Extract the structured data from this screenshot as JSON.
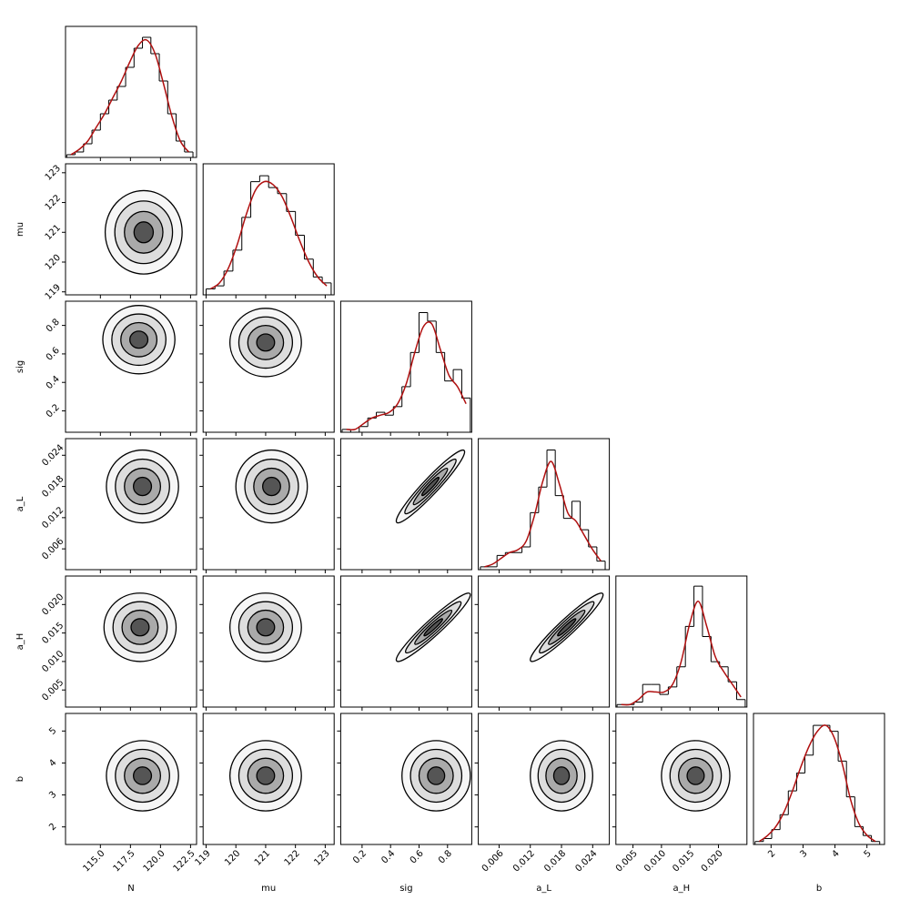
{
  "chart_data": {
    "type": "corner",
    "hist_color": "#000000",
    "kde_color": "#b01010",
    "contour_color": "#000000",
    "params": [
      {
        "name": "N",
        "lim": [
          112.1,
          123.0
        ],
        "ticks": [
          {
            "value": 115,
            "label": "115.0"
          },
          {
            "value": 117.5,
            "label": "117.5"
          },
          {
            "value": 120,
            "label": "120.0"
          },
          {
            "value": 122.5,
            "label": "122.5"
          }
        ],
        "bins": [
          112.2,
          112.9,
          113.6,
          114.3,
          115.0,
          115.7,
          116.4,
          117.1,
          117.8,
          118.5,
          119.2,
          119.9,
          120.6,
          121.3,
          122.0,
          122.7
        ],
        "counts": [
          1,
          2,
          5,
          10,
          16,
          21,
          26,
          33,
          40,
          44,
          38,
          28,
          16,
          6,
          2
        ],
        "kde": [
          1,
          3,
          6,
          11,
          16,
          22,
          28,
          35,
          41,
          43,
          38,
          27,
          15,
          6,
          2
        ],
        "count_lim": [
          0,
          48
        ]
      },
      {
        "name": "mu",
        "lim": [
          118.9,
          123.3
        ],
        "ticks": [
          119,
          120,
          121,
          122,
          123
        ],
        "bins": [
          119.0,
          119.3,
          119.6,
          119.9,
          120.2,
          120.5,
          120.8,
          121.1,
          121.4,
          121.7,
          122.0,
          122.3,
          122.6,
          122.9,
          123.2
        ],
        "counts": [
          2,
          3,
          8,
          15,
          26,
          38,
          40,
          36,
          34,
          28,
          20,
          12,
          6,
          4
        ],
        "kde": [
          2,
          4,
          9,
          17,
          27,
          35,
          38,
          37,
          33,
          26,
          18,
          11,
          6,
          3
        ],
        "count_lim": [
          0,
          44
        ]
      },
      {
        "name": "sig",
        "lim": [
          0.05,
          0.97
        ],
        "ticks": [
          0.2,
          0.4,
          0.6,
          0.8
        ],
        "bins": [
          0.06,
          0.12,
          0.18,
          0.24,
          0.3,
          0.36,
          0.42,
          0.48,
          0.54,
          0.6,
          0.66,
          0.72,
          0.78,
          0.84,
          0.9,
          0.96
        ],
        "counts": [
          1,
          0,
          2,
          5,
          7,
          6,
          9,
          16,
          28,
          42,
          39,
          28,
          18,
          22,
          12
        ],
        "kde": [
          1,
          1,
          3,
          5,
          6,
          7,
          10,
          17,
          28,
          37,
          38,
          29,
          20,
          16,
          10
        ],
        "count_lim": [
          0,
          46
        ]
      },
      {
        "name": "a_L",
        "lim": [
          0.002,
          0.0272
        ],
        "ticks": [
          0.006,
          0.012,
          0.018,
          0.024
        ],
        "bins": [
          0.0024,
          0.004,
          0.0056,
          0.0072,
          0.0088,
          0.0104,
          0.012,
          0.0136,
          0.0152,
          0.0168,
          0.0184,
          0.02,
          0.0216,
          0.0232,
          0.0248,
          0.0264
        ],
        "counts": [
          1,
          1,
          5,
          6,
          6,
          8,
          20,
          29,
          42,
          26,
          18,
          24,
          14,
          8,
          3
        ],
        "kde": [
          1,
          2,
          4,
          6,
          7,
          10,
          19,
          31,
          38,
          30,
          20,
          17,
          12,
          7,
          3
        ],
        "count_lim": [
          0,
          46
        ]
      },
      {
        "name": "a_H",
        "lim": [
          0.002,
          0.025
        ],
        "ticks": [
          {
            "value": 0.005,
            "label": "0.005"
          },
          {
            "value": 0.01,
            "label": "0.010"
          },
          {
            "value": 0.015,
            "label": "0.015"
          },
          {
            "value": 0.02,
            "label": "0.020"
          }
        ],
        "bins": [
          0.0022,
          0.0037,
          0.0052,
          0.0067,
          0.0082,
          0.0097,
          0.0112,
          0.0127,
          0.0142,
          0.0157,
          0.0172,
          0.0187,
          0.0202,
          0.0217,
          0.0232,
          0.0247
        ],
        "counts": [
          1,
          1,
          2,
          9,
          9,
          5,
          8,
          16,
          32,
          48,
          28,
          18,
          16,
          10,
          3
        ],
        "kde": [
          1,
          1,
          3,
          6,
          6,
          6,
          9,
          18,
          33,
          42,
          32,
          20,
          14,
          9,
          4
        ],
        "count_lim": [
          0,
          52
        ]
      },
      {
        "name": "b",
        "lim": [
          1.45,
          5.55
        ],
        "ticks": [
          2,
          3,
          4,
          5
        ],
        "bins": [
          1.5,
          1.76,
          2.02,
          2.28,
          2.54,
          2.8,
          3.06,
          3.32,
          3.58,
          3.84,
          4.1,
          4.36,
          4.62,
          4.88,
          5.14,
          5.4
        ],
        "counts": [
          1,
          2,
          5,
          10,
          18,
          24,
          30,
          40,
          40,
          38,
          28,
          16,
          6,
          3,
          1
        ],
        "kde": [
          1,
          3,
          6,
          11,
          18,
          26,
          33,
          38,
          40,
          36,
          27,
          15,
          7,
          3,
          1
        ],
        "count_lim": [
          0,
          44
        ]
      }
    ],
    "pairs": [
      {
        "center": [
          118.6,
          121.0
        ],
        "spread": [
          1.6,
          0.7
        ],
        "corr": 0
      },
      {
        "center": [
          118.2,
          0.7
        ],
        "spread": [
          1.5,
          0.12
        ],
        "corr": 0
      },
      {
        "center": [
          121.0,
          0.68
        ],
        "spread": [
          0.6,
          0.12
        ],
        "corr": 0
      },
      {
        "center": [
          118.5,
          0.018
        ],
        "spread": [
          1.5,
          0.0035
        ],
        "corr": 0
      },
      {
        "center": [
          121.2,
          0.018
        ],
        "spread": [
          0.6,
          0.0035
        ],
        "corr": 0
      },
      {
        "center": [
          0.68,
          0.018
        ],
        "spread": [
          0.12,
          0.0035
        ],
        "corr": 0.95
      },
      {
        "center": [
          118.3,
          0.016
        ],
        "spread": [
          1.5,
          0.003
        ],
        "corr": 0
      },
      {
        "center": [
          121.0,
          0.016
        ],
        "spread": [
          0.6,
          0.003
        ],
        "corr": 0
      },
      {
        "center": [
          0.7,
          0.016
        ],
        "spread": [
          0.13,
          0.003
        ],
        "corr": 0.95
      },
      {
        "center": [
          0.019,
          0.016
        ],
        "spread": [
          0.0035,
          0.003
        ],
        "corr": 0.95
      },
      {
        "center": [
          118.5,
          3.6
        ],
        "spread": [
          1.5,
          0.55
        ],
        "corr": 0
      },
      {
        "center": [
          121.0,
          3.6
        ],
        "spread": [
          0.6,
          0.55
        ],
        "corr": 0
      },
      {
        "center": [
          0.72,
          3.6
        ],
        "spread": [
          0.12,
          0.55
        ],
        "corr": 0
      },
      {
        "center": [
          0.018,
          3.6
        ],
        "spread": [
          0.003,
          0.55
        ],
        "corr": 0
      },
      {
        "center": [
          0.016,
          3.6
        ],
        "spread": [
          0.003,
          0.55
        ],
        "corr": 0
      }
    ]
  }
}
